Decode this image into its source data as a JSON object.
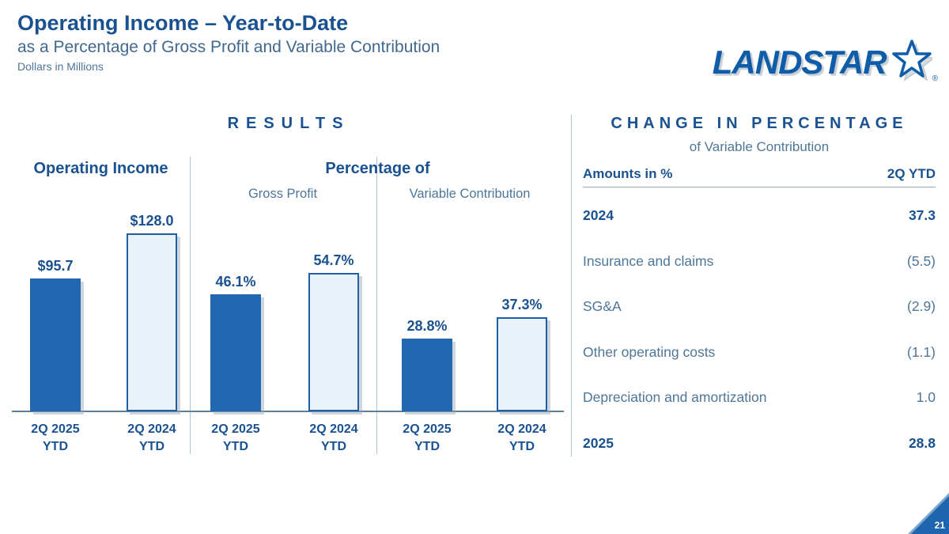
{
  "header": {
    "title": "Operating Income – Year-to-Date",
    "subtitle": "as a Percentage of Gross Profit and Variable Contribution",
    "units": "Dollars in Millions",
    "logo_text": "LANDSTAR",
    "logo_registered": "®"
  },
  "results": {
    "header": "RESULTS",
    "group1_title": "Operating Income",
    "group23_title": "Percentage of",
    "group2_subtitle": "Gross Profit",
    "group3_subtitle": "Variable Contribution"
  },
  "chart_data": [
    {
      "type": "bar",
      "title": "Operating Income",
      "unit": "USD millions",
      "categories": [
        "2Q 2025 YTD",
        "2Q 2024 YTD"
      ],
      "values": [
        95.7,
        128.0
      ],
      "labels": [
        "$95.7",
        "$128.0"
      ],
      "ylim": [
        0,
        140
      ],
      "grid": false,
      "legend": "none"
    },
    {
      "type": "bar",
      "title": "Percentage of Gross Profit",
      "unit": "percent",
      "categories": [
        "2Q 2025 YTD",
        "2Q 2024 YTD"
      ],
      "values": [
        46.1,
        54.7
      ],
      "labels": [
        "46.1%",
        "54.7%"
      ],
      "ylim": [
        0,
        60
      ],
      "grid": false,
      "legend": "none"
    },
    {
      "type": "bar",
      "title": "Percentage of Variable Contribution",
      "unit": "percent",
      "categories": [
        "2Q 2025 YTD",
        "2Q 2024 YTD"
      ],
      "values": [
        28.8,
        37.3
      ],
      "labels": [
        "28.8%",
        "37.3%"
      ],
      "ylim": [
        0,
        60
      ],
      "grid": false,
      "legend": "none"
    }
  ],
  "change_panel": {
    "header": "CHANGE IN PERCENTAGE",
    "subheader": "of Variable Contribution",
    "col_label": "Amounts in %",
    "col_value": "2Q YTD",
    "rows": [
      {
        "label": "2024",
        "value": "37.3"
      },
      {
        "label": "Insurance and claims",
        "value": "(5.5)"
      },
      {
        "label": "SG&A",
        "value": "(2.9)"
      },
      {
        "label": "Other operating costs",
        "value": "(1.1)"
      },
      {
        "label": "Depreciation and amortization",
        "value": "1.0"
      },
      {
        "label": "2025",
        "value": "28.8"
      }
    ]
  },
  "footer": {
    "page_number": "21"
  },
  "colors": {
    "navy": "#1A5291",
    "bar_solid": "#2268B0",
    "bar_light_fill": "#E9F1F9",
    "steel_text": "#4E7697",
    "divider": "#AFC3D6",
    "logo_blue": "#0F5CA8"
  }
}
